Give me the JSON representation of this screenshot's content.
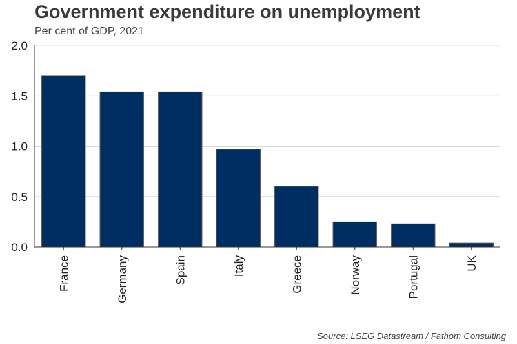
{
  "chart_data": {
    "type": "bar",
    "title": "Government expenditure on unemployment",
    "subtitle": "Per cent of GDP, 2021",
    "source": "Source: LSEG Datastream / Fathom Consulting",
    "categories": [
      "France",
      "Germany",
      "Spain",
      "Italy",
      "Greece",
      "Norway",
      "Portugal",
      "UK"
    ],
    "values": [
      1.7,
      1.54,
      1.54,
      0.97,
      0.6,
      0.25,
      0.23,
      0.04
    ],
    "ylim": [
      0,
      2.0
    ],
    "yticks": [
      0.0,
      0.5,
      1.0,
      1.5,
      2.0
    ],
    "ytick_labels": [
      "0.0",
      "0.5",
      "1.0",
      "1.5",
      "2.0"
    ],
    "xlabel": "",
    "ylabel": "",
    "grid": true,
    "bar_color": "#002e63",
    "bar_edge_color": "#555555"
  }
}
